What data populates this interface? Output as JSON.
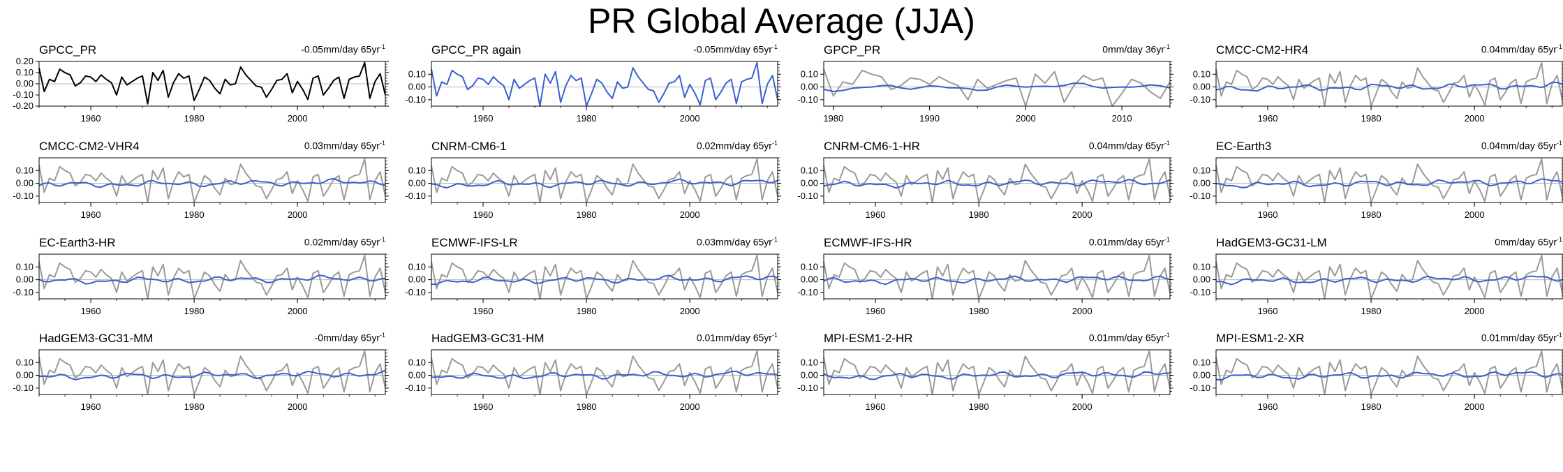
{
  "title": "PR Global Average (JJA)",
  "colors": {
    "observed": "#000000",
    "reference": "#9a9a9a",
    "model": "#3a5fd0",
    "zero_line": "#b4b4b4"
  },
  "series_reference": {
    "start_year": 1950,
    "values": [
      0.14,
      -0.07,
      0.04,
      0.02,
      0.13,
      0.1,
      0.08,
      -0.02,
      0.01,
      0.07,
      0.06,
      0.02,
      0.08,
      0.04,
      0.01,
      -0.1,
      0.06,
      -0.01,
      0.02,
      0.05,
      0.07,
      -0.18,
      0.1,
      0.03,
      0.12,
      -0.12,
      0.01,
      0.09,
      0.05,
      0.07,
      -0.15,
      -0.05,
      0.06,
      0.03,
      -0.04,
      -0.09,
      0.04,
      -0.01,
      0.0,
      0.15,
      0.08,
      0.03,
      -0.02,
      -0.03,
      -0.12,
      -0.05,
      0.03,
      0.04,
      0.09,
      -0.08,
      0.02,
      -0.05,
      -0.14,
      0.05,
      0.07,
      -0.1,
      -0.04,
      0.03,
      0.06,
      -0.13,
      0.04,
      0.06,
      0.07,
      0.19,
      -0.13,
      0.02,
      0.09,
      -0.1
    ]
  },
  "chart_data": [
    {
      "type": "line",
      "name": "GPCC_PR",
      "trend": "-0.05mm/day 65yr",
      "trend_sup": "-1",
      "color": "observed",
      "show_reference": false,
      "own_series": "reference",
      "xlim": [
        1950,
        2017
      ],
      "xticks": [
        1960,
        1980,
        2000
      ],
      "ylim": [
        -0.2,
        0.2
      ],
      "yticks": [
        0.2,
        0.1,
        0.0,
        -0.1,
        -0.2
      ],
      "ytick_labels": [
        "0.20",
        "0.10",
        "0.00",
        "-0.10",
        "-0.20"
      ],
      "seed": 0
    },
    {
      "type": "line",
      "name": "GPCC_PR again",
      "trend": "-0.05mm/day 65yr",
      "trend_sup": "-1",
      "color": "model",
      "show_reference": false,
      "own_series": "reference",
      "xlim": [
        1950,
        2017
      ],
      "xticks": [
        1960,
        1980,
        2000
      ],
      "ylim": [
        -0.15,
        0.2
      ],
      "yticks": [
        0.1,
        0.0,
        -0.1
      ],
      "ytick_labels": [
        "0.10",
        "0.00",
        "-0.10"
      ],
      "seed": 0
    },
    {
      "type": "line",
      "name": "GPCP_PR",
      "trend": "0mm/day 36yr",
      "trend_sup": "-1",
      "color": "model",
      "show_reference": true,
      "reference_start": 1979,
      "xlim": [
        1979,
        2015
      ],
      "xticks": [
        1980,
        1990,
        2000,
        2010
      ],
      "ylim": [
        -0.15,
        0.2
      ],
      "yticks": [
        0.1,
        0.0,
        -0.1
      ],
      "ytick_labels": [
        "0.10",
        "0.00",
        "-0.10"
      ],
      "seed": 3
    },
    {
      "type": "line",
      "name": "CMCC-CM2-HR4",
      "trend": "0.04mm/day 65yr",
      "trend_sup": "-1",
      "color": "model",
      "show_reference": true,
      "xlim": [
        1950,
        2017
      ],
      "xticks": [
        1960,
        1980,
        2000
      ],
      "ylim": [
        -0.15,
        0.2
      ],
      "yticks": [
        0.1,
        0.0,
        -0.1
      ],
      "ytick_labels": [
        "0.10",
        "0.00",
        "-0.10"
      ],
      "seed": 5
    },
    {
      "type": "line",
      "name": "CMCC-CM2-VHR4",
      "trend": "0.03mm/day 65yr",
      "trend_sup": "-1",
      "color": "model",
      "show_reference": true,
      "xlim": [
        1950,
        2017
      ],
      "xticks": [
        1960,
        1980,
        2000
      ],
      "ylim": [
        -0.15,
        0.2
      ],
      "yticks": [
        0.1,
        0.0,
        -0.1
      ],
      "ytick_labels": [
        "0.10",
        "0.00",
        "-0.10"
      ],
      "seed": 7
    },
    {
      "type": "line",
      "name": "CNRM-CM6-1",
      "trend": "0.02mm/day 65yr",
      "trend_sup": "-1",
      "color": "model",
      "show_reference": true,
      "xlim": [
        1950,
        2017
      ],
      "xticks": [
        1960,
        1980,
        2000
      ],
      "ylim": [
        -0.15,
        0.2
      ],
      "yticks": [
        0.1,
        0.0,
        -0.1
      ],
      "ytick_labels": [
        "0.10",
        "0.00",
        "-0.10"
      ],
      "seed": 9
    },
    {
      "type": "line",
      "name": "CNRM-CM6-1-HR",
      "trend": "0.04mm/day 65yr",
      "trend_sup": "-1",
      "color": "model",
      "show_reference": true,
      "xlim": [
        1950,
        2017
      ],
      "xticks": [
        1960,
        1980,
        2000
      ],
      "ylim": [
        -0.15,
        0.2
      ],
      "yticks": [
        0.1,
        0.0,
        -0.1
      ],
      "ytick_labels": [
        "0.10",
        "0.00",
        "-0.10"
      ],
      "seed": 11
    },
    {
      "type": "line",
      "name": "EC-Earth3",
      "trend": "0.04mm/day 65yr",
      "trend_sup": "-1",
      "color": "model",
      "show_reference": true,
      "xlim": [
        1950,
        2017
      ],
      "xticks": [
        1960,
        1980,
        2000
      ],
      "ylim": [
        -0.15,
        0.2
      ],
      "yticks": [
        0.1,
        0.0,
        -0.1
      ],
      "ytick_labels": [
        "0.10",
        "0.00",
        "-0.10"
      ],
      "seed": 13
    },
    {
      "type": "line",
      "name": "EC-Earth3-HR",
      "trend": "0.02mm/day 65yr",
      "trend_sup": "-1",
      "color": "model",
      "show_reference": true,
      "xlim": [
        1950,
        2017
      ],
      "xticks": [
        1960,
        1980,
        2000
      ],
      "ylim": [
        -0.15,
        0.2
      ],
      "yticks": [
        0.1,
        0.0,
        -0.1
      ],
      "ytick_labels": [
        "0.10",
        "0.00",
        "-0.10"
      ],
      "seed": 15
    },
    {
      "type": "line",
      "name": "ECMWF-IFS-LR",
      "trend": "0.03mm/day 65yr",
      "trend_sup": "-1",
      "color": "model",
      "show_reference": true,
      "xlim": [
        1950,
        2017
      ],
      "xticks": [
        1960,
        1980,
        2000
      ],
      "ylim": [
        -0.15,
        0.2
      ],
      "yticks": [
        0.1,
        0.0,
        -0.1
      ],
      "ytick_labels": [
        "0.10",
        "0.00",
        "-0.10"
      ],
      "seed": 17
    },
    {
      "type": "line",
      "name": "ECMWF-IFS-HR",
      "trend": "0.01mm/day 65yr",
      "trend_sup": "-1",
      "color": "model",
      "show_reference": true,
      "xlim": [
        1950,
        2017
      ],
      "xticks": [
        1960,
        1980,
        2000
      ],
      "ylim": [
        -0.15,
        0.2
      ],
      "yticks": [
        0.1,
        0.0,
        -0.1
      ],
      "ytick_labels": [
        "0.10",
        "0.00",
        "-0.10"
      ],
      "seed": 19
    },
    {
      "type": "line",
      "name": "HadGEM3-GC31-LM",
      "trend": "0mm/day 65yr",
      "trend_sup": "-1",
      "color": "model",
      "show_reference": true,
      "xlim": [
        1950,
        2017
      ],
      "xticks": [
        1960,
        1980,
        2000
      ],
      "ylim": [
        -0.15,
        0.2
      ],
      "yticks": [
        0.1,
        0.0,
        -0.1
      ],
      "ytick_labels": [
        "0.10",
        "0.00",
        "-0.10"
      ],
      "seed": 21
    },
    {
      "type": "line",
      "name": "HadGEM3-GC31-MM",
      "trend": "-0mm/day 65yr",
      "trend_sup": "-1",
      "color": "model",
      "show_reference": true,
      "xlim": [
        1950,
        2017
      ],
      "xticks": [
        1960,
        1980,
        2000
      ],
      "ylim": [
        -0.15,
        0.2
      ],
      "yticks": [
        0.1,
        0.0,
        -0.1
      ],
      "ytick_labels": [
        "0.10",
        "0.00",
        "-0.10"
      ],
      "seed": 23
    },
    {
      "type": "line",
      "name": "HadGEM3-GC31-HM",
      "trend": "0.01mm/day 65yr",
      "trend_sup": "-1",
      "color": "model",
      "show_reference": true,
      "xlim": [
        1950,
        2017
      ],
      "xticks": [
        1960,
        1980,
        2000
      ],
      "ylim": [
        -0.15,
        0.2
      ],
      "yticks": [
        0.1,
        0.0,
        -0.1
      ],
      "ytick_labels": [
        "0.10",
        "0.00",
        "-0.10"
      ],
      "seed": 25
    },
    {
      "type": "line",
      "name": "MPI-ESM1-2-HR",
      "trend": "0.01mm/day 65yr",
      "trend_sup": "-1",
      "color": "model",
      "show_reference": true,
      "xlim": [
        1950,
        2017
      ],
      "xticks": [
        1960,
        1980,
        2000
      ],
      "ylim": [
        -0.15,
        0.2
      ],
      "yticks": [
        0.1,
        0.0,
        -0.1
      ],
      "ytick_labels": [
        "0.10",
        "0.00",
        "-0.10"
      ],
      "seed": 27
    },
    {
      "type": "line",
      "name": "MPI-ESM1-2-XR",
      "trend": "0.01mm/day 65yr",
      "trend_sup": "-1",
      "color": "model",
      "show_reference": true,
      "xlim": [
        1950,
        2017
      ],
      "xticks": [
        1960,
        1980,
        2000
      ],
      "ylim": [
        -0.15,
        0.2
      ],
      "yticks": [
        0.1,
        0.0,
        -0.1
      ],
      "ytick_labels": [
        "0.10",
        "0.00",
        "-0.10"
      ],
      "seed": 29
    }
  ]
}
